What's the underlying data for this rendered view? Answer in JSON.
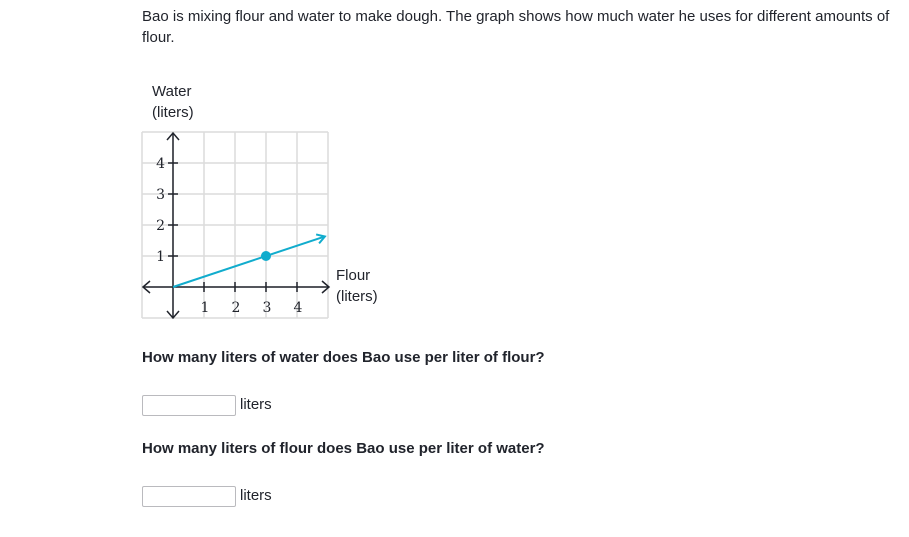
{
  "problem": {
    "intro_line1": "Bao is mixing flour and water to make dough. The graph shows how much water he uses for different amounts of",
    "intro_line2": "flour."
  },
  "graph": {
    "y_title_line1": "Water",
    "y_title_line2": "(liters)",
    "x_title_line1": "Flour",
    "x_title_line2": "(liters)",
    "x_ticks": [
      "1",
      "2",
      "3",
      "4"
    ],
    "y_ticks": [
      "1",
      "2",
      "3",
      "4"
    ],
    "line_color": "#11accd",
    "grid_color": "#dcdcdc",
    "axis_color": "#21242c"
  },
  "chart_data": {
    "type": "line",
    "x": [
      0,
      3,
      4.9
    ],
    "y": [
      0,
      1,
      1.63
    ],
    "xlim": [
      -1,
      5
    ],
    "ylim": [
      -1,
      5
    ],
    "highlighted_point": [
      3,
      1
    ],
    "xlabel": "Flour (liters)",
    "ylabel": "Water (liters)",
    "grid": true
  },
  "questions": [
    {
      "text": "How many liters of water does Bao use per liter of flour?",
      "input_value": "",
      "unit": "liters"
    },
    {
      "text": "How many liters of flour does Bao use per liter of water?",
      "input_value": "",
      "unit": "liters"
    }
  ]
}
